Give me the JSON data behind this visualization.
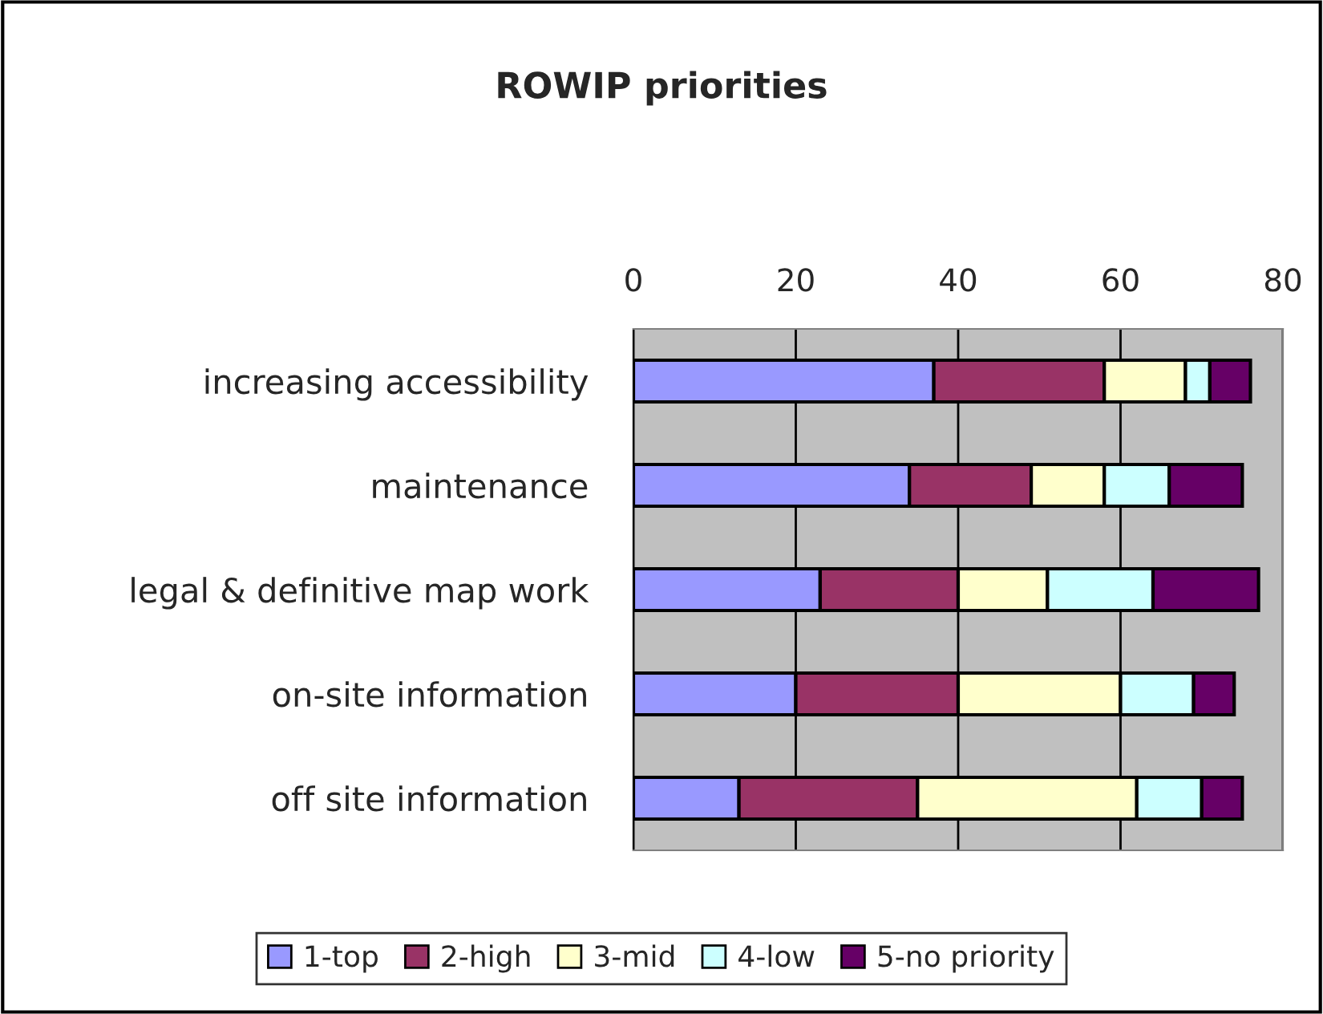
{
  "chart_data": {
    "type": "bar",
    "orientation": "horizontal",
    "stacked": true,
    "title": "ROWIP priorities",
    "categories": [
      "increasing accessibility",
      "maintenance",
      "legal & definitive map work",
      "on-site information",
      "off site information"
    ],
    "series": [
      {
        "name": "1-top",
        "color": "#9999ff",
        "values": [
          37,
          34,
          23,
          20,
          13
        ]
      },
      {
        "name": "2-high",
        "color": "#993366",
        "values": [
          21,
          15,
          17,
          20,
          22
        ]
      },
      {
        "name": "3-mid",
        "color": "#ffffcc",
        "values": [
          10,
          9,
          11,
          20,
          27
        ]
      },
      {
        "name": "4-low",
        "color": "#ccffff",
        "values": [
          3,
          8,
          13,
          9,
          8
        ]
      },
      {
        "name": "5-no priority",
        "color": "#660066",
        "values": [
          5,
          9,
          13,
          5,
          5
        ]
      }
    ],
    "xlim": [
      0,
      80
    ],
    "xticks": [
      0,
      20,
      40,
      60,
      80
    ],
    "grid": "x",
    "legend": "bottom"
  }
}
